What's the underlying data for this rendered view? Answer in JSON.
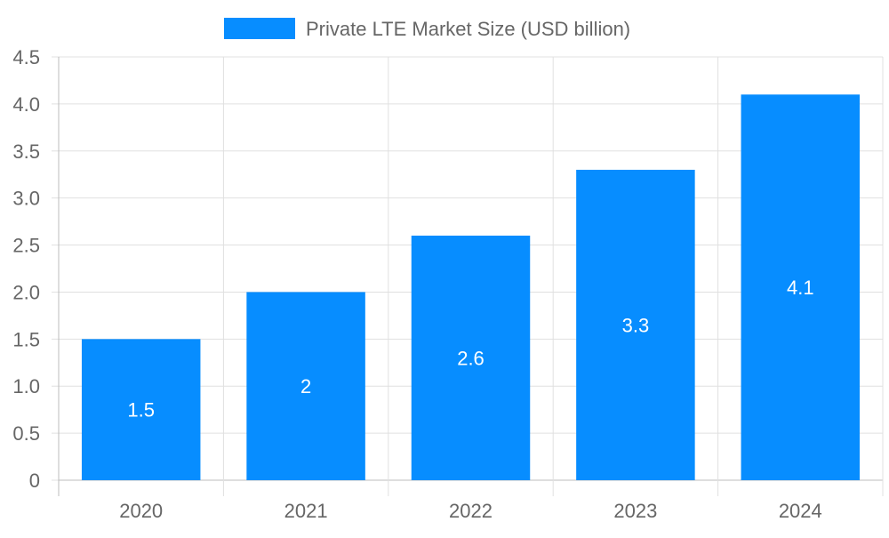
{
  "chart_data": {
    "type": "bar",
    "title": "",
    "xlabel": "",
    "ylabel": "",
    "categories": [
      "2020",
      "2021",
      "2022",
      "2023",
      "2024"
    ],
    "series": [
      {
        "name": "Private LTE Market Size (USD billion)",
        "values": [
          1.5,
          2,
          2.6,
          3.3,
          4.1
        ],
        "data_labels": [
          "1.5",
          "2",
          "2.6",
          "3.3",
          "4.1"
        ]
      }
    ],
    "ylim": [
      0,
      4.5
    ],
    "yticks": [
      "0",
      "0.5",
      "1.0",
      "1.5",
      "2.0",
      "2.5",
      "3.0",
      "3.5",
      "4.0",
      "4.5"
    ],
    "grid": true,
    "legend_position": "top",
    "colors": {
      "bar": "#078dff",
      "grid": "#e0e0e0",
      "axis": "#bdbdbd",
      "text": "#666666",
      "data_label": "#ffffff"
    }
  }
}
